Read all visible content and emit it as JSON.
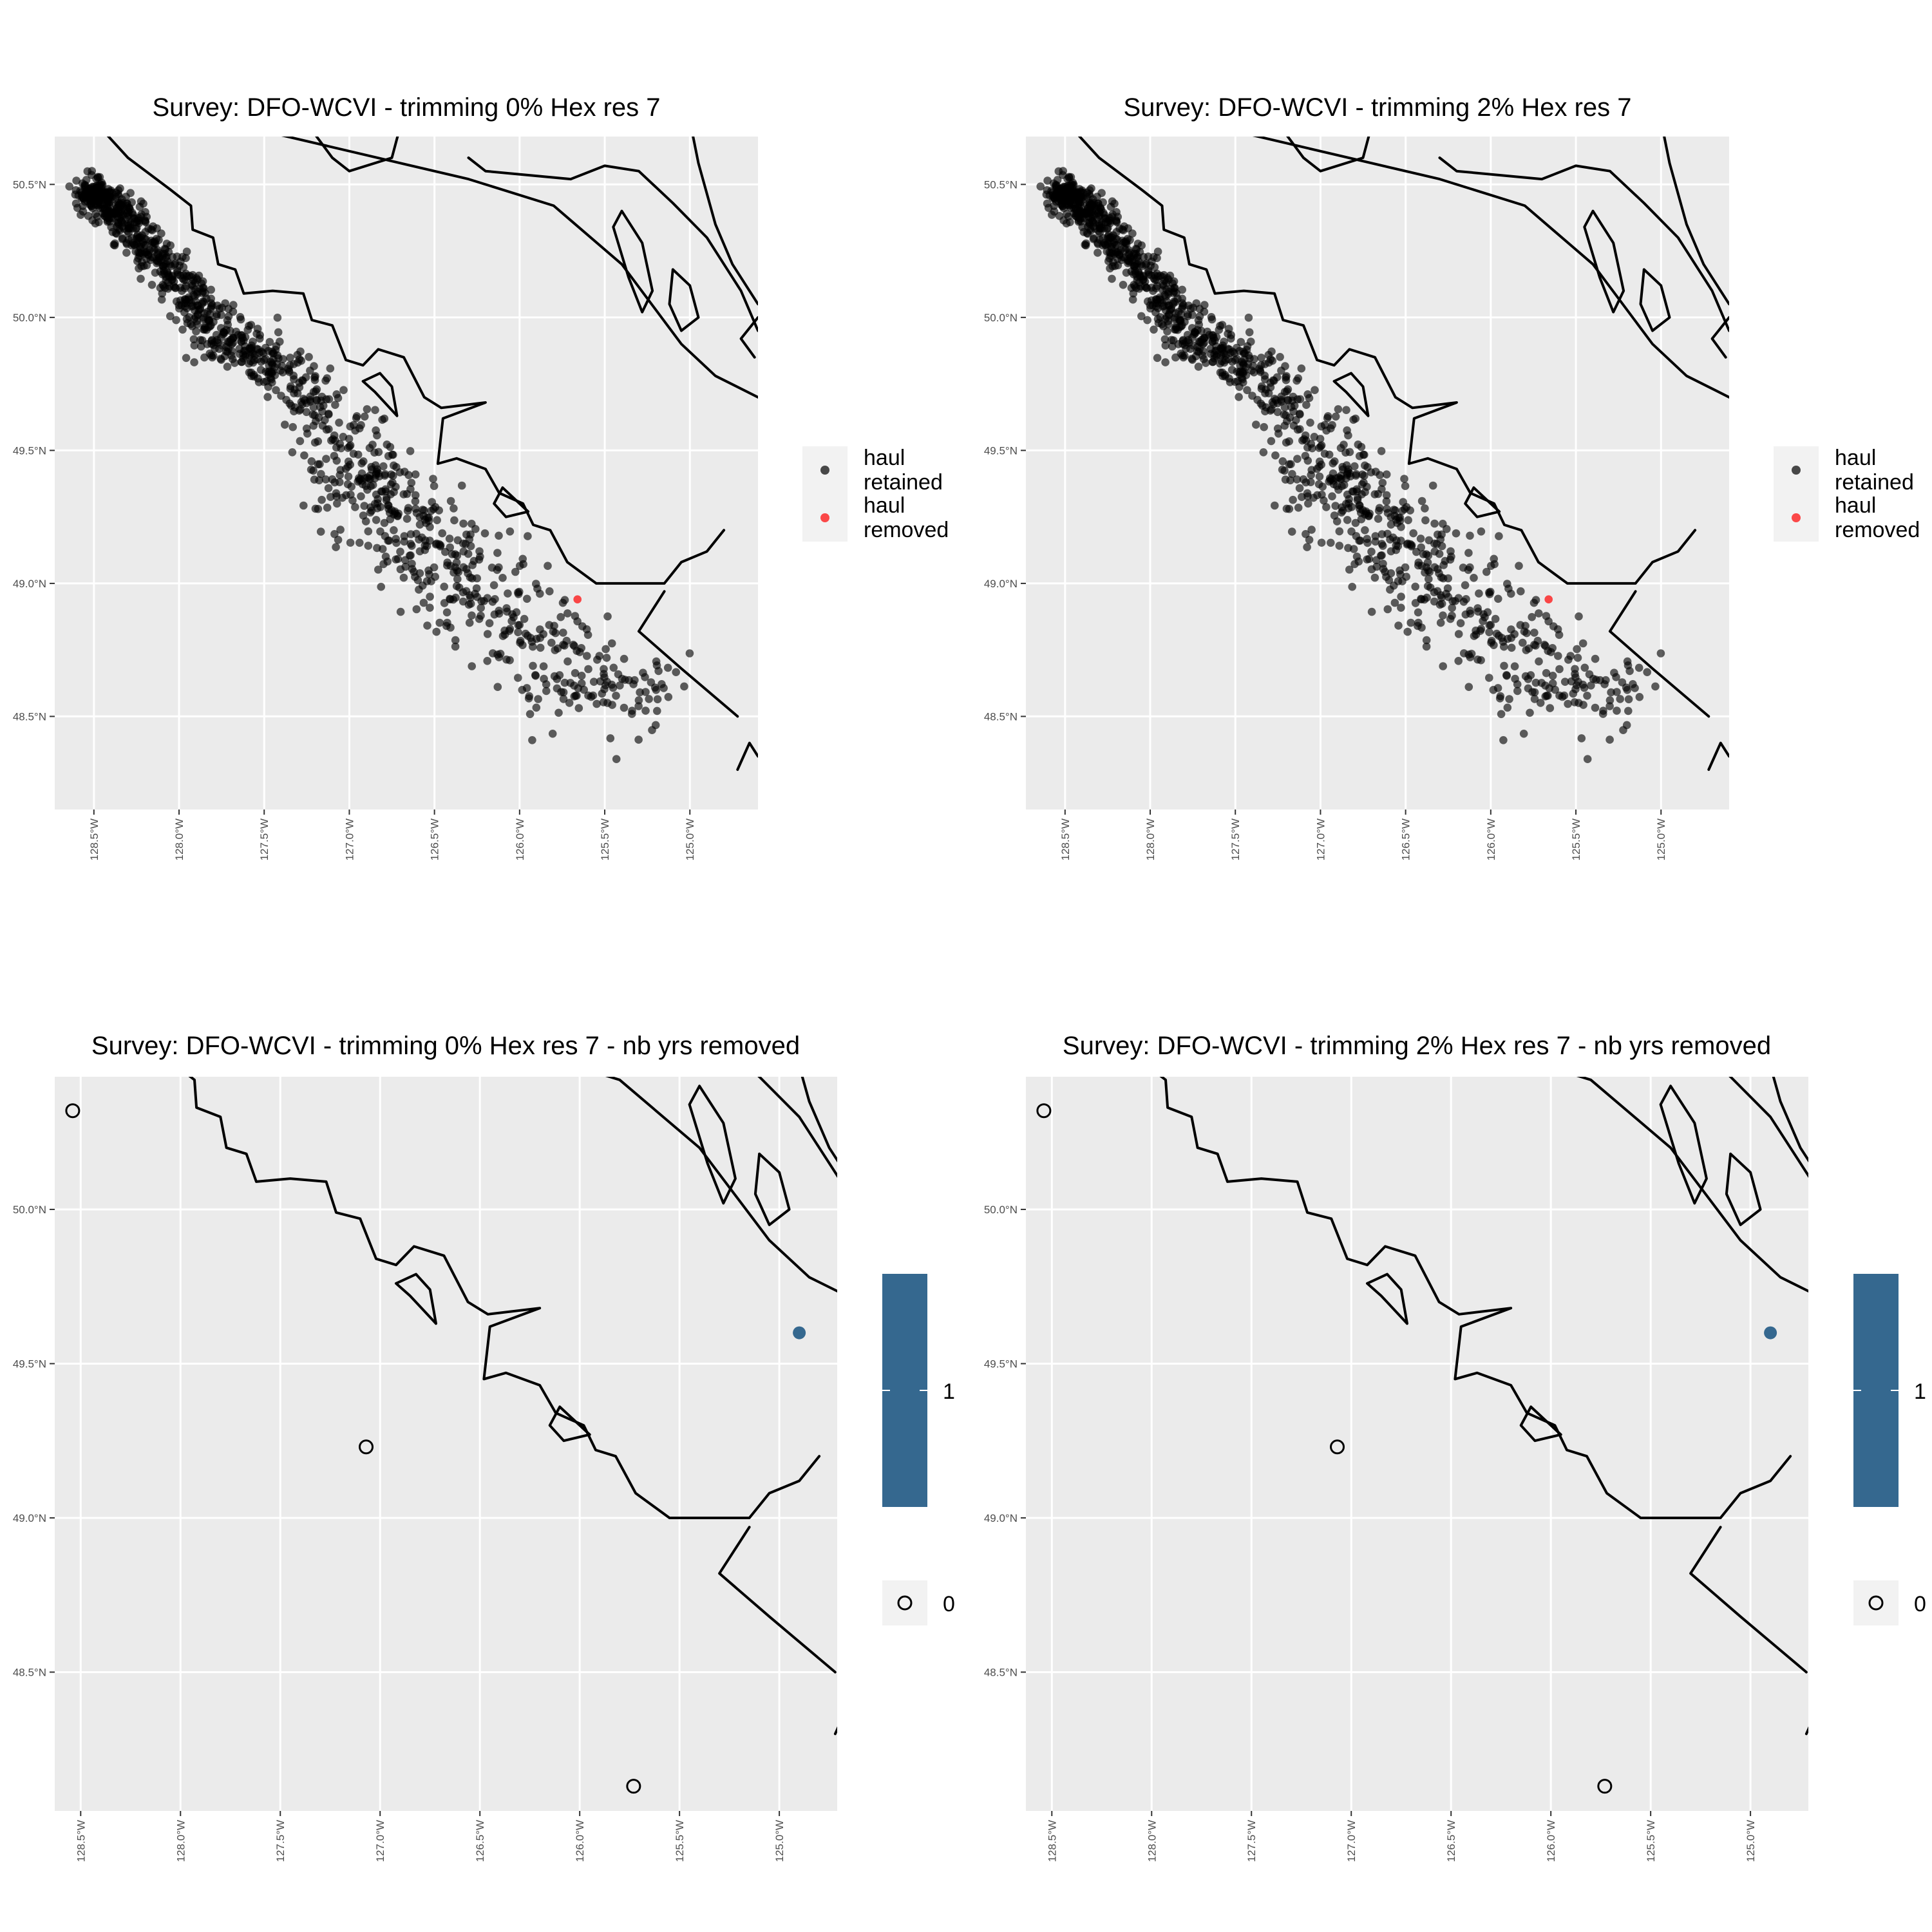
{
  "chart_data": [
    {
      "type": "scatter",
      "title": "Survey: DFO-WCVI - trimming 0% Hex res 7",
      "x_ticks": [
        "128.5°W",
        "128.0°W",
        "127.5°W",
        "127.0°W",
        "126.5°W",
        "126.0°W",
        "125.5°W",
        "125.0°W"
      ],
      "y_ticks": [
        "48.5°N",
        "49.0°N",
        "49.5°N",
        "50.0°N",
        "50.5°N"
      ],
      "xlim": [
        -128.73,
        -124.6
      ],
      "ylim": [
        48.15,
        50.68
      ],
      "legend": {
        "position": "right",
        "entries": [
          {
            "label": "haul retained",
            "color": "#000000"
          },
          {
            "label": "haul removed",
            "color": "#ff0000"
          }
        ]
      },
      "series": [
        {
          "name": "haul retained",
          "color": "#000000",
          "generator": "survey_cluster",
          "n": 1290
        },
        {
          "name": "haul removed",
          "color": "#ff0000",
          "points": [
            [
              -125.66,
              48.94
            ]
          ]
        }
      ]
    },
    {
      "type": "scatter",
      "title": "Survey: DFO-WCVI - trimming 2% Hex res 7",
      "x_ticks": [
        "128.5°W",
        "128.0°W",
        "127.5°W",
        "127.0°W",
        "126.5°W",
        "126.0°W",
        "125.5°W",
        "125.0°W"
      ],
      "y_ticks": [
        "48.5°N",
        "49.0°N",
        "49.5°N",
        "50.0°N",
        "50.5°N"
      ],
      "xlim": [
        -128.73,
        -124.6
      ],
      "ylim": [
        48.15,
        50.68
      ],
      "legend": {
        "position": "right",
        "entries": [
          {
            "label": "haul retained",
            "color": "#000000"
          },
          {
            "label": "haul removed",
            "color": "#ff0000"
          }
        ]
      },
      "series": [
        {
          "name": "haul retained",
          "color": "#000000",
          "generator": "survey_cluster",
          "n": 1290
        },
        {
          "name": "haul removed",
          "color": "#ff0000",
          "points": [
            [
              -125.66,
              48.94
            ]
          ]
        }
      ]
    },
    {
      "type": "scatter",
      "title": "Survey: DFO-WCVI - trimming 0% Hex res 7 - nb yrs removed",
      "x_ticks": [
        "128.5°W",
        "128.0°W",
        "127.5°W",
        "127.0°W",
        "126.5°W",
        "126.0°W",
        "125.5°W",
        "125.0°W"
      ],
      "y_ticks": [
        "48.5°N",
        "49.0°N",
        "49.5°N",
        "50.0°N"
      ],
      "xlim": [
        -128.63,
        -124.71
      ],
      "ylim": [
        48.05,
        50.43
      ],
      "legend": {
        "position": "right",
        "colorbar_label": "1",
        "zero_label": "0",
        "fill_color": "#35688f"
      },
      "points": [
        {
          "x": -128.54,
          "y": 50.32,
          "value": 0
        },
        {
          "x": -127.07,
          "y": 49.23,
          "value": 0
        },
        {
          "x": -125.73,
          "y": 48.13,
          "value": 0
        },
        {
          "x": -124.9,
          "y": 49.6,
          "value": 1
        }
      ]
    },
    {
      "type": "scatter",
      "title": "Survey: DFO-WCVI - trimming 2% Hex res 7 - nb yrs removed",
      "x_ticks": [
        "128.5°W",
        "128.0°W",
        "127.5°W",
        "127.0°W",
        "126.5°W",
        "126.0°W",
        "125.5°W",
        "125.0°W"
      ],
      "y_ticks": [
        "48.5°N",
        "49.0°N",
        "49.5°N",
        "50.0°N"
      ],
      "xlim": [
        -128.63,
        -124.71
      ],
      "ylim": [
        48.05,
        50.43
      ],
      "legend": {
        "position": "right",
        "colorbar_label": "1",
        "zero_label": "0",
        "fill_color": "#35688f"
      },
      "points": [
        {
          "x": -128.54,
          "y": 50.32,
          "value": 0
        },
        {
          "x": -127.07,
          "y": 49.23,
          "value": 0
        },
        {
          "x": -125.73,
          "y": 48.13,
          "value": 0
        },
        {
          "x": -124.9,
          "y": 49.6,
          "value": 1
        }
      ]
    }
  ]
}
